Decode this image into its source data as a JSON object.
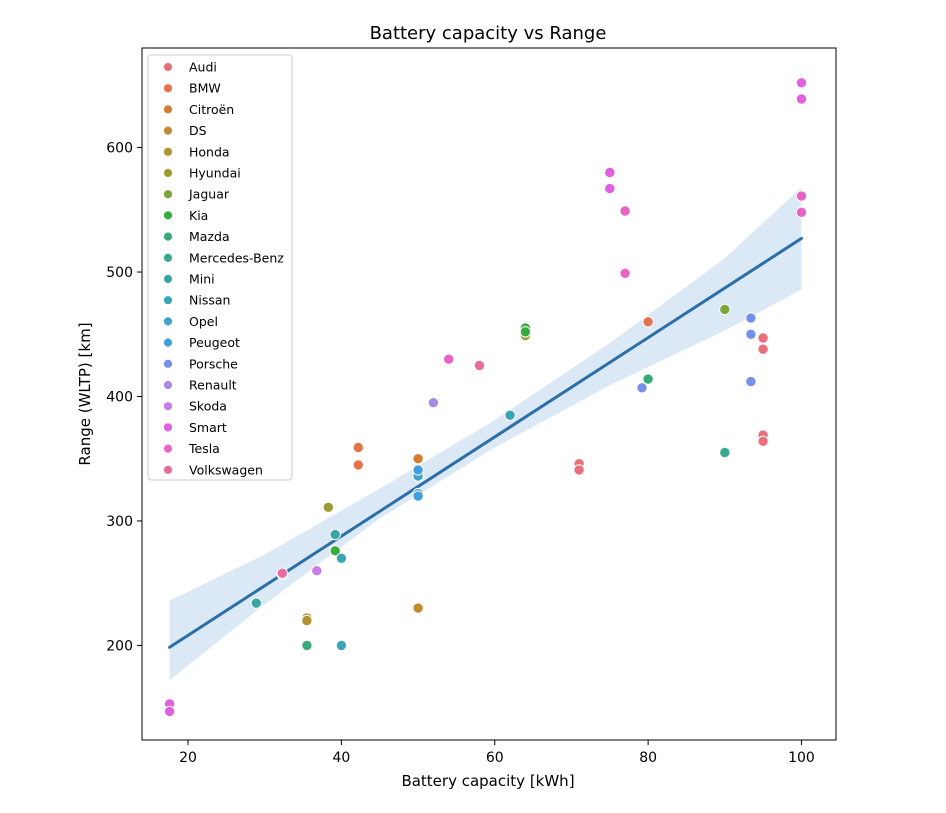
{
  "chart_data": {
    "type": "scatter",
    "title": "Battery capacity vs Range",
    "xlabel": "Battery capacity [kWh]",
    "ylabel": "Range (WLTP) [km]",
    "xlim": [
      14,
      104.5
    ],
    "ylim": [
      124,
      680
    ],
    "xticks": [
      20,
      40,
      60,
      80,
      100
    ],
    "yticks": [
      200,
      300,
      400,
      500,
      600
    ],
    "grid": false,
    "legend_position": "upper-left",
    "colors": {
      "Audi": "#e8707b",
      "BMW": "#e5734a",
      "Citroën": "#d77b2e",
      "DS": "#c5882e",
      "Honda": "#b3922e",
      "Hyundai": "#9a9c30",
      "Jaguar": "#7aa538",
      "Kia": "#35ad3c",
      "Mazda": "#3aaa78",
      "Mercedes-Benz": "#36a993",
      "Mini": "#38a7a4",
      "Nissan": "#3aa6b5",
      "Opel": "#3da3c9",
      "Peugeot": "#3f9de0",
      "Porsche": "#7590ea",
      "Renault": "#a98ae8",
      "Skoda": "#c87ce6",
      "Smart": "#e35fe1",
      "Tesla": "#e962c6",
      "Volkswagen": "#e96a9c",
      "regression_line": "#2b6ea8",
      "confidence_band": "#cfe0f1"
    },
    "series": [
      {
        "name": "Audi",
        "points": [
          [
            71,
            346
          ],
          [
            71,
            341
          ],
          [
            95,
            447
          ],
          [
            95,
            438
          ],
          [
            95,
            369
          ],
          [
            95,
            364
          ]
        ]
      },
      {
        "name": "BMW",
        "points": [
          [
            80,
            460
          ],
          [
            42.2,
            359
          ],
          [
            42.2,
            345
          ]
        ]
      },
      {
        "name": "Citroën",
        "points": [
          [
            50,
            350
          ],
          [
            50,
            230
          ]
        ]
      },
      {
        "name": "DS",
        "points": [
          [
            50,
            230
          ]
        ]
      },
      {
        "name": "Honda",
        "points": [
          [
            35.5,
            222
          ],
          [
            35.5,
            220
          ]
        ]
      },
      {
        "name": "Hyundai",
        "points": [
          [
            38.3,
            311
          ],
          [
            64,
            449
          ],
          [
            90,
            470
          ]
        ]
      },
      {
        "name": "Jaguar",
        "points": [
          [
            90,
            470
          ],
          [
            64,
            452
          ]
        ]
      },
      {
        "name": "Kia",
        "points": [
          [
            39.2,
            276
          ],
          [
            64,
            455
          ],
          [
            64,
            452
          ]
        ]
      },
      {
        "name": "Mazda",
        "points": [
          [
            35.5,
            200
          ],
          [
            80,
            414
          ]
        ]
      },
      {
        "name": "Mercedes-Benz",
        "points": [
          [
            90,
            356
          ],
          [
            90,
            355
          ],
          [
            62,
            385
          ]
        ]
      },
      {
        "name": "Mini",
        "points": [
          [
            28.9,
            234
          ],
          [
            39.2,
            289
          ]
        ]
      },
      {
        "name": "Nissan",
        "points": [
          [
            40,
            270
          ],
          [
            40,
            200
          ],
          [
            62,
            385
          ]
        ]
      },
      {
        "name": "Opel",
        "points": [
          [
            50,
            336
          ],
          [
            50,
            322
          ]
        ]
      },
      {
        "name": "Peugeot",
        "points": [
          [
            50,
            341
          ],
          [
            50,
            320
          ]
        ]
      },
      {
        "name": "Porsche",
        "points": [
          [
            93.4,
            463
          ],
          [
            93.4,
            450
          ],
          [
            79.2,
            407
          ],
          [
            93.4,
            412
          ]
        ]
      },
      {
        "name": "Renault",
        "points": [
          [
            52,
            395
          ],
          [
            32.3,
            257
          ]
        ]
      },
      {
        "name": "Skoda",
        "points": [
          [
            36.8,
            260
          ]
        ]
      },
      {
        "name": "Smart",
        "points": [
          [
            17.6,
            153
          ],
          [
            17.6,
            147
          ],
          [
            75,
            580
          ],
          [
            75,
            567
          ],
          [
            100,
            652
          ],
          [
            100,
            639
          ]
        ]
      },
      {
        "name": "Tesla",
        "points": [
          [
            54,
            430
          ],
          [
            77,
            549
          ],
          [
            77,
            499
          ],
          [
            100,
            561
          ],
          [
            100,
            548
          ]
        ]
      },
      {
        "name": "Volkswagen",
        "points": [
          [
            58,
            425
          ],
          [
            32.3,
            258
          ]
        ]
      }
    ],
    "regression": {
      "x": [
        17.6,
        100
      ],
      "y": [
        198.5,
        527
      ]
    },
    "confidence_band": [
      {
        "x": 17.6,
        "lower": 172,
        "upper": 236
      },
      {
        "x": 30,
        "lower": 233,
        "upper": 273
      },
      {
        "x": 45,
        "lower": 302,
        "upper": 326
      },
      {
        "x": 60,
        "lower": 359,
        "upper": 381
      },
      {
        "x": 75,
        "lower": 409,
        "upper": 443
      },
      {
        "x": 90,
        "lower": 453,
        "upper": 511
      },
      {
        "x": 100,
        "lower": 486,
        "upper": 568
      }
    ]
  }
}
